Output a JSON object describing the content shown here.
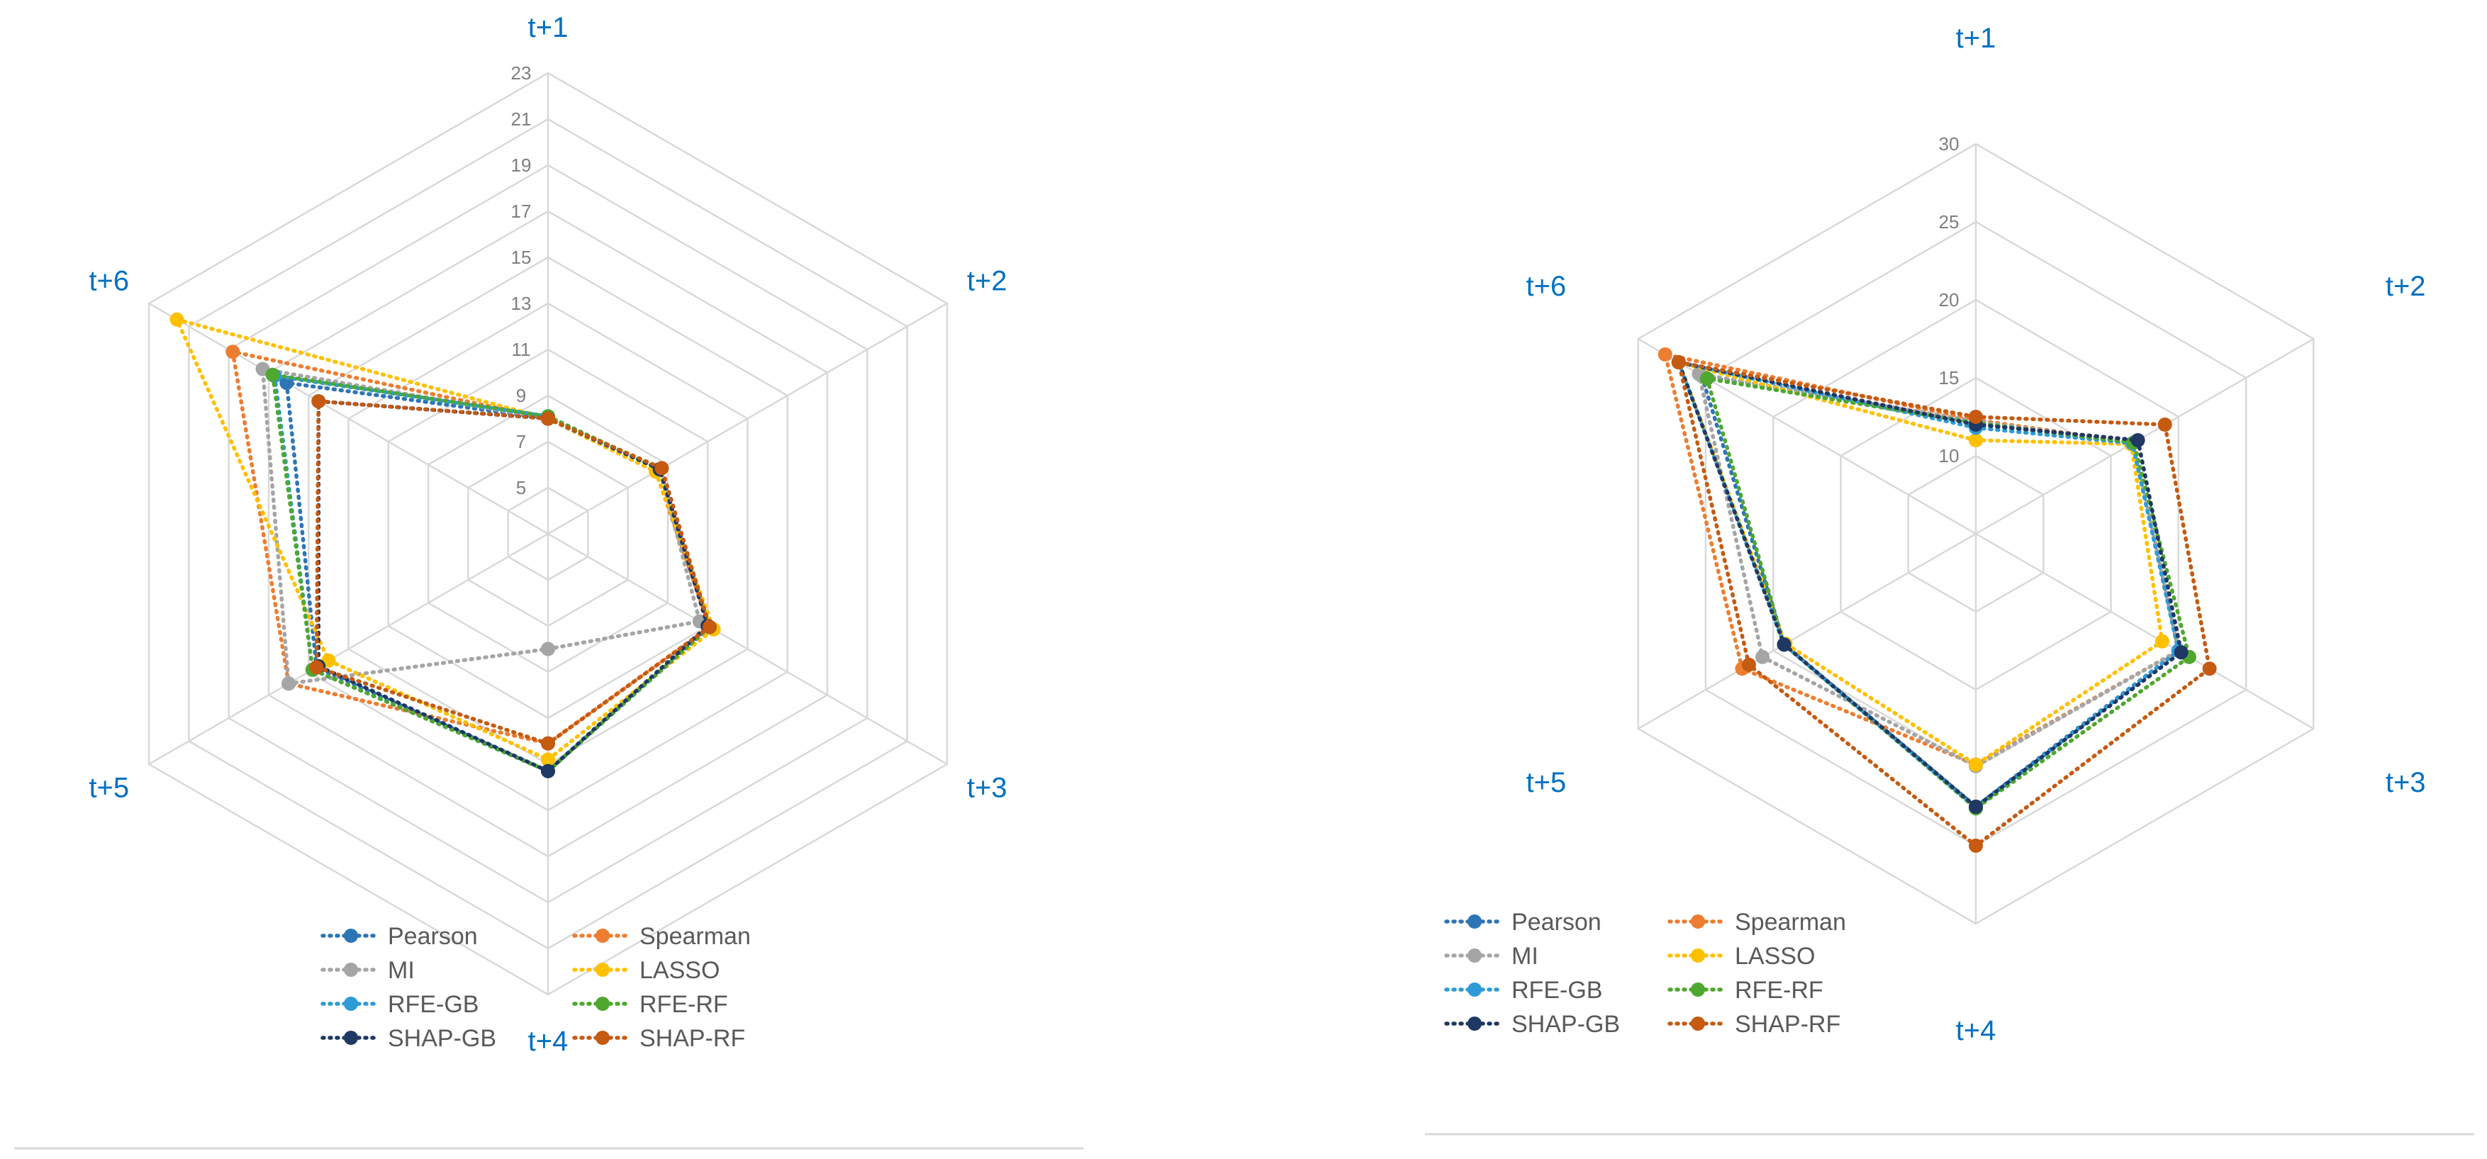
{
  "colors": {
    "Pearson": "#2e75b6",
    "Spearman": "#ed7d31",
    "MI": "#a5a5a5",
    "LASSO": "#ffc000",
    "RFE-GB": "#2e9bd6",
    "RFE-RF": "#4ea72e",
    "SHAP-GB": "#1f3864",
    "SHAP-RF": "#c55a11"
  },
  "chart_data": [
    {
      "type": "radar",
      "title": "",
      "axes": [
        "t+1",
        "t+2",
        "t+3",
        "t+4",
        "t+5",
        "t+6"
      ],
      "rmin": 3,
      "rmax": 23,
      "ticks": [
        "5",
        "7",
        "9",
        "11",
        "13",
        "15",
        "17",
        "19",
        "21",
        "23"
      ],
      "tick_values": [
        5,
        7,
        9,
        11,
        13,
        15,
        17,
        19,
        21,
        23
      ],
      "legend_position": "bottom",
      "series": [
        {
          "name": "Pearson",
          "values": [
            8.0,
            8.6,
            11.1,
            13.3,
            14.6,
            16.1
          ]
        },
        {
          "name": "Spearman",
          "values": [
            8.0,
            8.4,
            11.1,
            12.1,
            16.0,
            18.8
          ]
        },
        {
          "name": "MI",
          "values": [
            8.0,
            8.6,
            10.6,
            8.0,
            16.0,
            17.3
          ]
        },
        {
          "name": "LASSO",
          "values": [
            8.0,
            8.4,
            11.3,
            12.8,
            14.0,
            21.6
          ]
        },
        {
          "name": "RFE-GB",
          "values": [
            8.1,
            8.6,
            11.1,
            13.3,
            14.8,
            16.7
          ]
        },
        {
          "name": "RFE-RF",
          "values": [
            8.1,
            8.6,
            11.1,
            13.3,
            14.8,
            16.8
          ]
        },
        {
          "name": "SHAP-GB",
          "values": [
            8.0,
            8.6,
            11.0,
            13.3,
            14.5,
            14.5
          ]
        },
        {
          "name": "SHAP-RF",
          "values": [
            8.0,
            8.7,
            11.1,
            12.1,
            14.6,
            14.5
          ]
        }
      ]
    },
    {
      "type": "radar",
      "title": "",
      "axes": [
        "t+1",
        "t+2",
        "t+3",
        "t+4",
        "t+5",
        "t+6"
      ],
      "rmin": 5,
      "rmax": 30,
      "ticks": [
        "10",
        "15",
        "20",
        "25",
        "30"
      ],
      "tick_values": [
        10,
        15,
        20,
        25,
        30
      ],
      "legend_position": "bottom",
      "series": [
        {
          "name": "Pearson",
          "values": [
            12.1,
            16.6,
            20.0,
            22.5,
            19.2,
            25.3
          ]
        },
        {
          "name": "Spearman",
          "values": [
            12.3,
            16.7,
            20.0,
            19.8,
            22.3,
            28.0
          ]
        },
        {
          "name": "MI",
          "values": [
            12.2,
            16.7,
            20.0,
            19.9,
            20.8,
            25.5
          ]
        },
        {
          "name": "LASSO",
          "values": [
            11.0,
            16.5,
            18.8,
            19.8,
            19.1,
            27.0
          ]
        },
        {
          "name": "RFE-GB",
          "values": [
            11.8,
            16.6,
            20.0,
            22.6,
            19.2,
            27.0
          ]
        },
        {
          "name": "RFE-RF",
          "values": [
            12.1,
            16.7,
            20.8,
            22.6,
            19.2,
            24.9
          ]
        },
        {
          "name": "SHAP-GB",
          "values": [
            12.0,
            17.0,
            20.2,
            22.5,
            19.2,
            27.0
          ]
        },
        {
          "name": "SHAP-RF",
          "values": [
            12.5,
            19.0,
            22.3,
            25.0,
            21.8,
            27.0
          ]
        }
      ]
    }
  ]
}
